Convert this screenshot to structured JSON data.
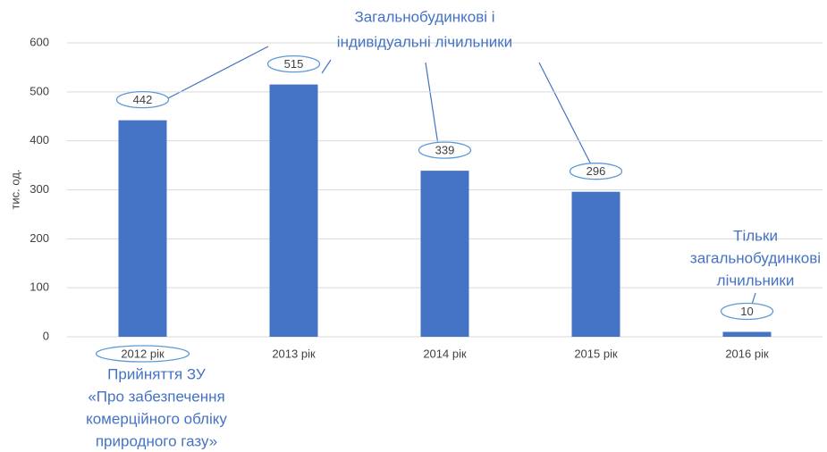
{
  "chart_data": {
    "type": "bar",
    "y_label": "тис. од.",
    "categories": [
      "2012 рік",
      "2013 рік",
      "2014 рік",
      "2015 рік",
      "2016 рік"
    ],
    "values": [
      442,
      515,
      339,
      296,
      10
    ],
    "color": "#4472c4",
    "ylim": [
      0,
      600
    ],
    "yticks": [
      0,
      100,
      200,
      300,
      400,
      500,
      600
    ],
    "grid": true,
    "annotations": [
      [
        "Загальнобудинкові і",
        "індивідуальні  лічильники"
      ],
      [
        "Тільки",
        "загальнобудинкові",
        "лічильники"
      ],
      [
        "Прийняття ЗУ",
        "«Про забезпечення",
        "комерційного обліку",
        "природного  газу»"
      ]
    ]
  }
}
